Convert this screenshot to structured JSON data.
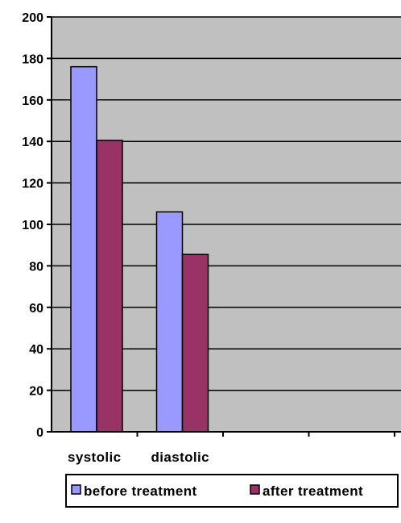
{
  "chart_data": {
    "type": "bar",
    "categories": [
      "systolic",
      "diastolic",
      "",
      ""
    ],
    "series": [
      {
        "name": "before treatment",
        "values": [
          176,
          106,
          null,
          null
        ],
        "color": "#9999ff"
      },
      {
        "name": "after treatment",
        "values": [
          140.5,
          85.5,
          null,
          null
        ],
        "color": "#993366"
      }
    ],
    "ylim": [
      0,
      200
    ],
    "yticks": [
      0,
      20,
      40,
      60,
      80,
      100,
      120,
      140,
      160,
      180,
      200
    ],
    "ytick_labels": [
      "0",
      "20",
      "40",
      "60",
      "80",
      "100",
      "120",
      "140",
      "160",
      "180",
      "200"
    ],
    "grid": true,
    "plot_background": "#c0c0c0",
    "legend_position": "bottom"
  }
}
